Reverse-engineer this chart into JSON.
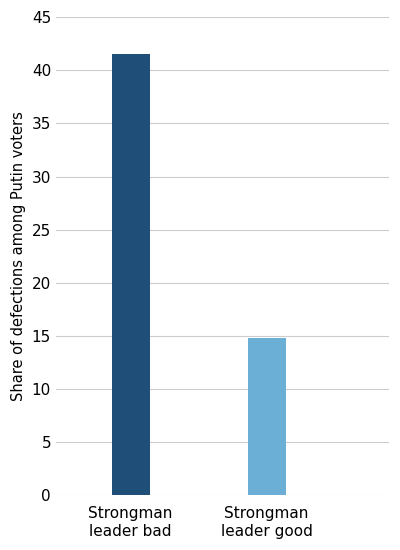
{
  "categories": [
    "Strongman\nleader bad",
    "Strongman\nleader good"
  ],
  "values": [
    41.5,
    14.8
  ],
  "bar_colors": [
    "#1F4E79",
    "#6BAED6"
  ],
  "ylabel": "Share of defections among Putin voters",
  "ylim": [
    0,
    45
  ],
  "yticks": [
    0,
    5,
    10,
    15,
    20,
    25,
    30,
    35,
    40,
    45
  ],
  "bar_width": 0.28,
  "background_color": "#ffffff",
  "grid_color": "#cccccc",
  "ylabel_fontsize": 10.5,
  "tick_fontsize": 11,
  "xlabel_fontsize": 11
}
